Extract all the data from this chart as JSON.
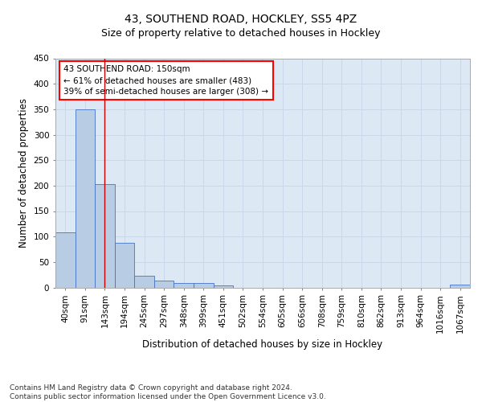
{
  "title1": "43, SOUTHEND ROAD, HOCKLEY, SS5 4PZ",
  "title2": "Size of property relative to detached houses in Hockley",
  "xlabel": "Distribution of detached houses by size in Hockley",
  "ylabel": "Number of detached properties",
  "categories": [
    "40sqm",
    "91sqm",
    "143sqm",
    "194sqm",
    "245sqm",
    "297sqm",
    "348sqm",
    "399sqm",
    "451sqm",
    "502sqm",
    "554sqm",
    "605sqm",
    "656sqm",
    "708sqm",
    "759sqm",
    "810sqm",
    "862sqm",
    "913sqm",
    "964sqm",
    "1016sqm",
    "1067sqm"
  ],
  "values": [
    108,
    350,
    203,
    88,
    23,
    14,
    9,
    8,
    4,
    0,
    0,
    0,
    0,
    0,
    0,
    0,
    0,
    0,
    0,
    0,
    5
  ],
  "bar_color": "#b8cce4",
  "bar_edge_color": "#4472c4",
  "vline_x": 2,
  "vline_color": "#cc0000",
  "annotation_text": "43 SOUTHEND ROAD: 150sqm\n← 61% of detached houses are smaller (483)\n39% of semi-detached houses are larger (308) →",
  "annotation_box_color": "white",
  "annotation_box_edge_color": "red",
  "ylim": [
    0,
    450
  ],
  "yticks": [
    0,
    50,
    100,
    150,
    200,
    250,
    300,
    350,
    400,
    450
  ],
  "grid_color": "#c8d8e8",
  "background_color": "#dce9f5",
  "footer_text": "Contains HM Land Registry data © Crown copyright and database right 2024.\nContains public sector information licensed under the Open Government Licence v3.0.",
  "title1_fontsize": 10,
  "title2_fontsize": 9,
  "xlabel_fontsize": 8.5,
  "ylabel_fontsize": 8.5,
  "tick_fontsize": 7.5,
  "annotation_fontsize": 7.5,
  "footer_fontsize": 6.5
}
